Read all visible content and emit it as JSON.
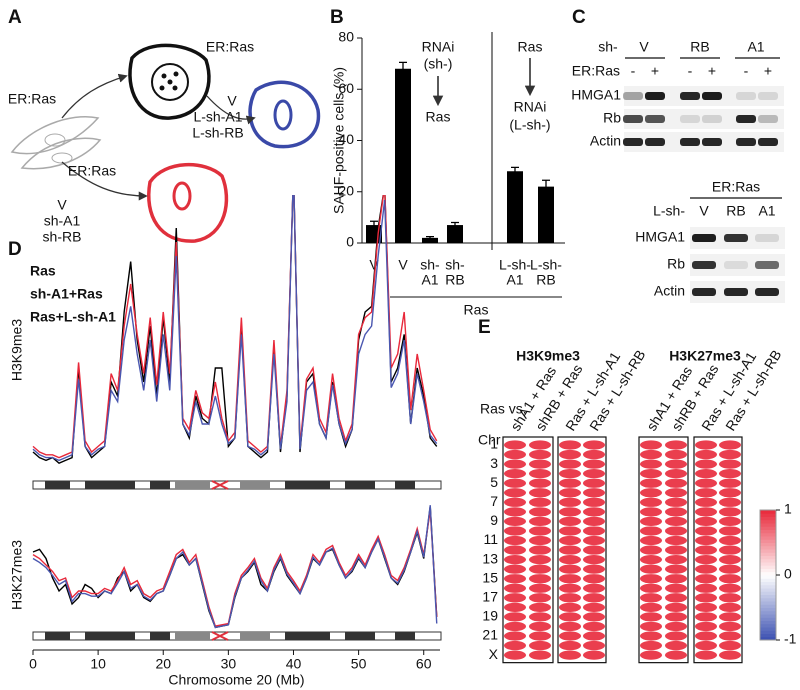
{
  "panel_labels": [
    "A",
    "B",
    "C",
    "D",
    "E"
  ],
  "panel_a": {
    "treatments": [
      "ER:Ras",
      "ER:Ras",
      "ER:Ras"
    ],
    "long_hairpins": [
      "V",
      "L-sh-A1",
      "L-sh-RB"
    ],
    "short_hairpins": [
      "V",
      "sh-A1",
      "sh-RB"
    ]
  },
  "panel_c": {
    "top": {
      "hairpin_label": "sh-",
      "groups": [
        "V",
        "RB",
        "A1"
      ],
      "treatment_label": "ER:Ras",
      "signs": [
        "-",
        "+",
        "-",
        "+",
        "-",
        "+"
      ],
      "rows": [
        "HMGA1",
        "Rb",
        "Actin"
      ]
    },
    "bottom": {
      "treatment_label": "ER:Ras",
      "hairpin_label": "L-sh-",
      "lanes": [
        "V",
        "RB",
        "A1"
      ],
      "rows": [
        "HMGA1",
        "Rb",
        "Actin"
      ]
    }
  },
  "chart_data": [
    {
      "type": "bar",
      "ylabel": "SAHF-positive cells (%)",
      "categories": [
        [
          "V"
        ],
        [
          "V"
        ],
        [
          "sh-",
          "A1"
        ],
        [
          "sh-",
          "RB"
        ],
        [
          "L-sh-",
          "A1"
        ],
        [
          "L-sh-",
          "RB"
        ]
      ],
      "values": [
        7,
        68,
        2,
        7,
        28,
        22
      ],
      "errors": [
        1.5,
        2.5,
        0.5,
        1,
        1.5,
        2.5
      ],
      "color": "#000000",
      "ylim": [
        0,
        80
      ],
      "yticks": [
        0,
        20,
        40,
        60,
        80
      ],
      "group_label": "Ras",
      "annotations": [
        "RNAi",
        "(sh-)",
        "Ras",
        "Ras",
        "RNAi",
        "(L-sh-)"
      ]
    },
    {
      "type": "line",
      "ylabel": "H3K9me3",
      "xlim": [
        0,
        62.5
      ],
      "ylim": [
        0,
        100
      ],
      "x": [
        0,
        1,
        2,
        3,
        4,
        5,
        6,
        7,
        8,
        9,
        10,
        11,
        12,
        13,
        14,
        15,
        16,
        17,
        18,
        19,
        20,
        21,
        22,
        23,
        24,
        25,
        26,
        27,
        28,
        29,
        30,
        31,
        32,
        33,
        34,
        35,
        36,
        37,
        38,
        39,
        40,
        41,
        42,
        43,
        44,
        45,
        46,
        47,
        48,
        49,
        50,
        51,
        52,
        53,
        54,
        55,
        56,
        57,
        58,
        59,
        60,
        61,
        62
      ],
      "series": [
        {
          "name": "Ras",
          "color": "#000000",
          "values": [
            10,
            8,
            7,
            8,
            6,
            7,
            8,
            40,
            12,
            8,
            10,
            12,
            35,
            30,
            60,
            78,
            50,
            35,
            55,
            30,
            58,
            35,
            90,
            20,
            15,
            30,
            22,
            20,
            40,
            40,
            12,
            15,
            55,
            12,
            10,
            8,
            10,
            48,
            10,
            30,
            110,
            10,
            35,
            38,
            20,
            15,
            35,
            20,
            12,
            18,
            50,
            60,
            62,
            90,
            105,
            35,
            40,
            52,
            20,
            40,
            30,
            15,
            12
          ]
        },
        {
          "name": "sh-A1+Ras",
          "color": "#e8283a",
          "values": [
            12,
            10,
            9,
            9,
            8,
            9,
            10,
            42,
            14,
            10,
            12,
            14,
            38,
            32,
            55,
            70,
            52,
            38,
            58,
            34,
            60,
            38,
            85,
            22,
            18,
            32,
            24,
            22,
            35,
            22,
            14,
            17,
            58,
            14,
            12,
            10,
            12,
            50,
            12,
            32,
            110,
            12,
            36,
            40,
            22,
            17,
            38,
            22,
            14,
            20,
            52,
            58,
            60,
            88,
            105,
            40,
            45,
            60,
            25,
            45,
            32,
            18,
            14
          ]
        },
        {
          "name": "Ras+L-sh-A1",
          "color": "#4a57b0",
          "values": [
            11,
            9,
            8,
            8,
            7,
            8,
            9,
            36,
            12,
            9,
            11,
            12,
            32,
            28,
            50,
            62,
            45,
            32,
            50,
            28,
            52,
            32,
            80,
            20,
            16,
            28,
            20,
            20,
            30,
            20,
            13,
            15,
            52,
            12,
            11,
            9,
            11,
            45,
            11,
            28,
            110,
            11,
            32,
            35,
            20,
            15,
            34,
            20,
            13,
            18,
            45,
            52,
            55,
            80,
            100,
            33,
            38,
            50,
            20,
            38,
            28,
            16,
            13
          ]
        }
      ]
    },
    {
      "type": "line",
      "ylabel": "H3K27me3",
      "xlabel": "Chromosome 20 (Mb)",
      "xlim": [
        0,
        62.5
      ],
      "ylim": [
        0,
        100
      ],
      "xticks": [
        0,
        10,
        20,
        30,
        40,
        50,
        60
      ],
      "x": [
        0,
        1,
        2,
        3,
        4,
        5,
        6,
        7,
        8,
        9,
        10,
        11,
        12,
        13,
        14,
        15,
        16,
        17,
        18,
        19,
        20,
        21,
        22,
        23,
        24,
        25,
        26,
        27,
        28,
        29,
        30,
        31,
        32,
        33,
        34,
        35,
        36,
        37,
        38,
        39,
        40,
        41,
        42,
        43,
        44,
        45,
        46,
        47,
        48,
        49,
        50,
        51,
        52,
        53,
        54,
        55,
        56,
        57,
        58,
        59,
        60,
        61,
        62
      ],
      "series": [
        {
          "color": "#000000",
          "values": [
            60,
            62,
            55,
            40,
            30,
            35,
            20,
            25,
            35,
            32,
            25,
            30,
            28,
            40,
            45,
            30,
            35,
            25,
            22,
            28,
            30,
            42,
            55,
            58,
            50,
            55,
            35,
            15,
            2,
            3,
            4,
            25,
            40,
            45,
            52,
            35,
            30,
            45,
            55,
            42,
            35,
            28,
            40,
            55,
            50,
            60,
            62,
            50,
            40,
            45,
            55,
            48,
            60,
            70,
            55,
            40,
            35,
            45,
            60,
            75,
            55,
            95,
            10
          ]
        },
        {
          "color": "#e8283a",
          "values": [
            58,
            55,
            50,
            45,
            38,
            40,
            25,
            30,
            30,
            28,
            28,
            32,
            30,
            38,
            48,
            35,
            38,
            28,
            25,
            30,
            32,
            45,
            58,
            62,
            52,
            58,
            38,
            18,
            3,
            4,
            5,
            28,
            42,
            48,
            55,
            40,
            32,
            48,
            58,
            45,
            38,
            30,
            42,
            58,
            52,
            62,
            65,
            52,
            42,
            48,
            58,
            50,
            62,
            72,
            58,
            42,
            38,
            48,
            62,
            78,
            58,
            92,
            10
          ]
        },
        {
          "color": "#4a57b0",
          "values": [
            55,
            52,
            48,
            42,
            35,
            38,
            22,
            28,
            28,
            26,
            26,
            30,
            28,
            36,
            45,
            32,
            35,
            26,
            23,
            28,
            30,
            42,
            55,
            60,
            50,
            55,
            36,
            16,
            2,
            3,
            4,
            26,
            40,
            46,
            53,
            38,
            30,
            46,
            56,
            43,
            36,
            28,
            40,
            56,
            50,
            60,
            63,
            50,
            40,
            46,
            56,
            48,
            60,
            70,
            56,
            40,
            36,
            46,
            60,
            76,
            56,
            96,
            5
          ]
        }
      ]
    },
    {
      "type": "heatmap",
      "row_label": "Chr",
      "column_prefix": "Ras vs.",
      "rows": [
        "1",
        null,
        "3",
        null,
        "5",
        null,
        "7",
        null,
        "9",
        null,
        "11",
        null,
        "13",
        null,
        "15",
        null,
        "17",
        null,
        "19",
        null,
        "21",
        null,
        "X"
      ],
      "zlim": [
        -1,
        1
      ],
      "zticks": [
        -1,
        0,
        1
      ],
      "colors": [
        "#3a4fb0",
        "#ffffff",
        "#e8283a"
      ],
      "panels": [
        {
          "title": "H3K9me3",
          "columns": [
            "shA1 + Ras",
            "shRB + Ras",
            "Ras + L-sh-A1",
            "Ras + L-sh-RB"
          ],
          "values": [
            [
              0.9,
              0.9,
              0.9,
              0.9,
              0.9,
              0.9,
              0.9,
              0.9,
              0.9,
              0.9,
              0.9,
              0.9,
              0.9,
              0.9,
              0.9,
              0.9,
              0.9,
              0.9,
              0.9,
              0.9,
              0.9,
              0.9,
              0.9
            ],
            [
              0.9,
              0.9,
              0.9,
              0.9,
              0.9,
              0.9,
              0.9,
              0.9,
              0.9,
              0.9,
              0.9,
              0.9,
              0.9,
              0.9,
              0.9,
              0.9,
              0.9,
              0.9,
              0.9,
              0.9,
              0.9,
              0.9,
              0.9
            ],
            [
              0.9,
              0.9,
              0.9,
              0.9,
              0.9,
              0.9,
              0.9,
              0.9,
              0.9,
              0.9,
              0.9,
              0.9,
              0.9,
              0.9,
              0.9,
              0.9,
              0.9,
              0.9,
              0.9,
              0.9,
              0.9,
              0.9,
              0.9
            ],
            [
              0.9,
              0.9,
              0.9,
              0.9,
              0.9,
              0.9,
              0.9,
              0.9,
              0.9,
              0.9,
              0.9,
              0.9,
              0.9,
              0.9,
              0.9,
              0.9,
              0.9,
              0.9,
              0.9,
              0.9,
              0.9,
              0.9,
              0.9
            ]
          ]
        },
        {
          "title": "H3K27me3",
          "columns": [
            "shA1 + Ras",
            "shRB + Ras",
            "Ras + L-sh-A1",
            "Ras + L-sh-RB"
          ],
          "values": [
            [
              0.9,
              0.9,
              0.9,
              0.9,
              0.9,
              0.9,
              0.9,
              0.9,
              0.9,
              0.9,
              0.9,
              0.9,
              0.9,
              0.9,
              0.9,
              0.9,
              0.9,
              0.9,
              0.9,
              0.9,
              0.9,
              0.9,
              0.9
            ],
            [
              0.9,
              0.9,
              0.9,
              0.9,
              0.9,
              0.9,
              0.9,
              0.9,
              0.9,
              0.9,
              0.9,
              0.9,
              0.9,
              0.9,
              0.9,
              0.9,
              0.9,
              0.9,
              0.9,
              0.9,
              0.9,
              0.9,
              0.9
            ],
            [
              0.9,
              0.9,
              0.9,
              0.9,
              0.9,
              0.9,
              0.9,
              0.9,
              0.9,
              0.9,
              0.9,
              0.9,
              0.9,
              0.9,
              0.9,
              0.9,
              0.9,
              0.9,
              0.9,
              0.9,
              0.9,
              0.9,
              0.9
            ],
            [
              0.9,
              0.9,
              0.9,
              0.9,
              0.9,
              0.9,
              0.9,
              0.9,
              0.9,
              0.9,
              0.9,
              0.9,
              0.9,
              0.9,
              0.9,
              0.9,
              0.9,
              0.9,
              0.9,
              0.9,
              0.9,
              0.9,
              0.9
            ]
          ]
        }
      ]
    }
  ]
}
